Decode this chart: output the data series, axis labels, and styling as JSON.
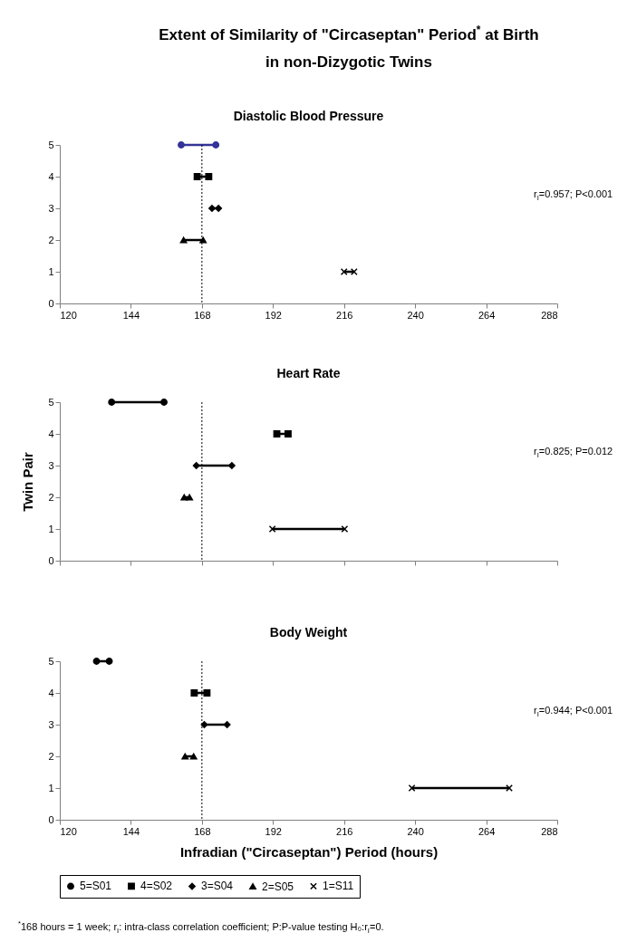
{
  "chart_data": [
    {
      "type": "line",
      "title": "Extent of Similarity of \"Circaseptan\" Period$^{*}$ at Birth in non-Dizygotic Twins",
      "subtitle": "Diastolic Blood Pressure",
      "xlim": [
        120,
        288
      ],
      "xticks": [
        120,
        144,
        168,
        192,
        216,
        240,
        264,
        288
      ],
      "ylim": [
        0,
        5
      ],
      "yticks": [
        0,
        1,
        2,
        3,
        4,
        5
      ],
      "grid": false,
      "ref_lines": [
        {
          "axis": "x",
          "value": 168,
          "line_style": "dotted",
          "color": "#000000"
        }
      ],
      "annotations": [
        "r$_{I}$=0.957; P<0.001"
      ],
      "series": [
        {
          "color": "#333399",
          "marker": "circle",
          "x": [
            161,
            172.7
          ],
          "values": [
            5,
            5
          ]
        },
        {
          "color": "#000000",
          "marker": "square",
          "x": [
            166.4,
            170.3
          ],
          "values": [
            4,
            4
          ]
        },
        {
          "color": "#000000",
          "marker": "diamond",
          "x": [
            171.4,
            173.6
          ],
          "values": [
            3,
            3
          ]
        },
        {
          "color": "#000000",
          "marker": "triangle",
          "x": [
            161.8,
            168.4
          ],
          "values": [
            2,
            2
          ]
        },
        {
          "color": "#000000",
          "marker": "cross",
          "x": [
            216,
            219.4
          ],
          "values": [
            1,
            1
          ]
        }
      ]
    },
    {
      "type": "line",
      "title": "Heart Rate",
      "ylabel": "Twin Pair",
      "xlim": [
        120,
        288
      ],
      "xticks": [
        120,
        144,
        168,
        192,
        216,
        240,
        264,
        288
      ],
      "ylim": [
        0,
        5
      ],
      "yticks": [
        0,
        1,
        2,
        3,
        4,
        5
      ],
      "grid": false,
      "tick_labels": "y",
      "ref_lines": [
        {
          "axis": "x",
          "value": 168,
          "line_style": "dotted",
          "color": "#000000"
        }
      ],
      "annotations": [
        "r$_{I}$=0.825; P=0.012"
      ],
      "series": [
        {
          "color": "#000000",
          "marker": "circle",
          "x": [
            137.5,
            155.2
          ],
          "values": [
            5,
            5
          ]
        },
        {
          "color": "#000000",
          "marker": "square",
          "x": [
            193.3,
            197.1
          ],
          "values": [
            4,
            4
          ]
        },
        {
          "color": "#000000",
          "marker": "diamond",
          "x": [
            166.1,
            178.1
          ],
          "values": [
            3,
            3
          ]
        },
        {
          "color": "#000000",
          "marker": "triangle",
          "x": [
            162,
            163.8
          ],
          "values": [
            2,
            2
          ]
        },
        {
          "color": "#000000",
          "marker": "cross",
          "x": [
            191.8,
            216.2
          ],
          "values": [
            1,
            1
          ]
        }
      ]
    },
    {
      "type": "line",
      "title": "Body Weight",
      "xlabel": "Infradian (\"Circaseptan\") Period (hours)",
      "xlim": [
        120,
        288
      ],
      "xticks": [
        120,
        144,
        168,
        192,
        216,
        240,
        264,
        288
      ],
      "ylim": [
        0,
        5
      ],
      "yticks": [
        0,
        1,
        2,
        3,
        4,
        5
      ],
      "grid": false,
      "legend": "bottom",
      "ref_lines": [
        {
          "axis": "x",
          "value": 168,
          "line_style": "dotted",
          "color": "#000000"
        }
      ],
      "annotations": [
        "r$_{I}$=0.944; P<0.001",
        "$^{*}$168 hours = 1 week; r$_{I}$: intra-class correlation coefficient; P:P-value testing H₀:r$_{I}$=0."
      ],
      "series": [
        {
          "name": "5=S01",
          "color": "#000000",
          "marker": "circle",
          "x": [
            132.4,
            136.7
          ],
          "values": [
            5,
            5
          ]
        },
        {
          "name": "4=S02",
          "color": "#000000",
          "marker": "square",
          "x": [
            165.4,
            169.7
          ],
          "values": [
            4,
            4
          ]
        },
        {
          "name": "3=S04",
          "color": "#000000",
          "marker": "diamond",
          "x": [
            168.8,
            176.5
          ],
          "values": [
            3,
            3
          ]
        },
        {
          "name": "2=S05",
          "color": "#000000",
          "marker": "triangle",
          "x": [
            162.3,
            165.2
          ],
          "values": [
            2,
            2
          ]
        },
        {
          "name": "1=S11",
          "color": "#000000",
          "marker": "cross",
          "x": [
            238.9,
            271.8
          ],
          "values": [
            1,
            1
          ]
        }
      ]
    }
  ]
}
